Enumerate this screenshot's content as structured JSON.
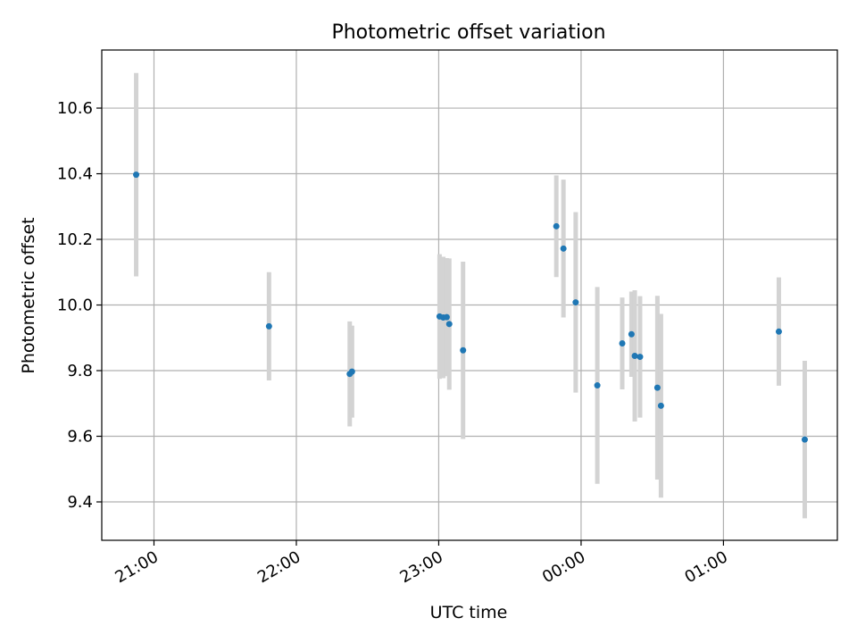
{
  "chart_data": {
    "type": "scatter",
    "title": "Photometric offset variation",
    "xlabel": "UTC time",
    "ylabel": "Photometric offset",
    "x_unit": "hours since 00:00 UTC",
    "xlim": [
      -3.3667,
      1.8
    ],
    "ylim": [
      9.283,
      10.777
    ],
    "grid": true,
    "x_ticks": [
      {
        "value": -3,
        "label": "21:00"
      },
      {
        "value": -2,
        "label": "22:00"
      },
      {
        "value": -1,
        "label": "23:00"
      },
      {
        "value": 0,
        "label": "00:00"
      },
      {
        "value": 1,
        "label": "01:00"
      }
    ],
    "y_ticks": [
      {
        "value": 9.4,
        "label": "9.4"
      },
      {
        "value": 9.6,
        "label": "9.6"
      },
      {
        "value": 9.8,
        "label": "9.8"
      },
      {
        "value": 10.0,
        "label": "10.0"
      },
      {
        "value": 10.2,
        "label": "10.2"
      },
      {
        "value": 10.4,
        "label": "10.4"
      },
      {
        "value": 10.6,
        "label": "10.6"
      }
    ],
    "colors": {
      "point": "#1f77b4",
      "errorbar": "#d3d3d3",
      "grid": "#b0b0b0"
    },
    "points": [
      {
        "x": -3.125,
        "y": 10.397,
        "err": 0.31
      },
      {
        "x": -2.192,
        "y": 9.935,
        "err": 0.165
      },
      {
        "x": -1.625,
        "y": 9.79,
        "err": 0.16
      },
      {
        "x": -1.609,
        "y": 9.797,
        "err": 0.14
      },
      {
        "x": -0.994,
        "y": 9.965,
        "err": 0.19
      },
      {
        "x": -0.968,
        "y": 9.962,
        "err": 0.185
      },
      {
        "x": -0.944,
        "y": 9.963,
        "err": 0.18
      },
      {
        "x": -0.926,
        "y": 9.942,
        "err": 0.2
      },
      {
        "x": -0.829,
        "y": 9.862,
        "err": 0.27
      },
      {
        "x": -0.174,
        "y": 10.24,
        "err": 0.155
      },
      {
        "x": -0.124,
        "y": 10.172,
        "err": 0.21
      },
      {
        "x": -0.038,
        "y": 10.008,
        "err": 0.275
      },
      {
        "x": 0.114,
        "y": 9.755,
        "err": 0.3
      },
      {
        "x": 0.289,
        "y": 9.883,
        "err": 0.14
      },
      {
        "x": 0.354,
        "y": 9.911,
        "err": 0.13
      },
      {
        "x": 0.377,
        "y": 9.845,
        "err": 0.2
      },
      {
        "x": 0.414,
        "y": 9.842,
        "err": 0.185
      },
      {
        "x": 0.536,
        "y": 9.748,
        "err": 0.28
      },
      {
        "x": 0.561,
        "y": 9.693,
        "err": 0.28
      },
      {
        "x": 1.389,
        "y": 9.919,
        "err": 0.165
      },
      {
        "x": 1.571,
        "y": 9.59,
        "err": 0.24
      }
    ]
  }
}
